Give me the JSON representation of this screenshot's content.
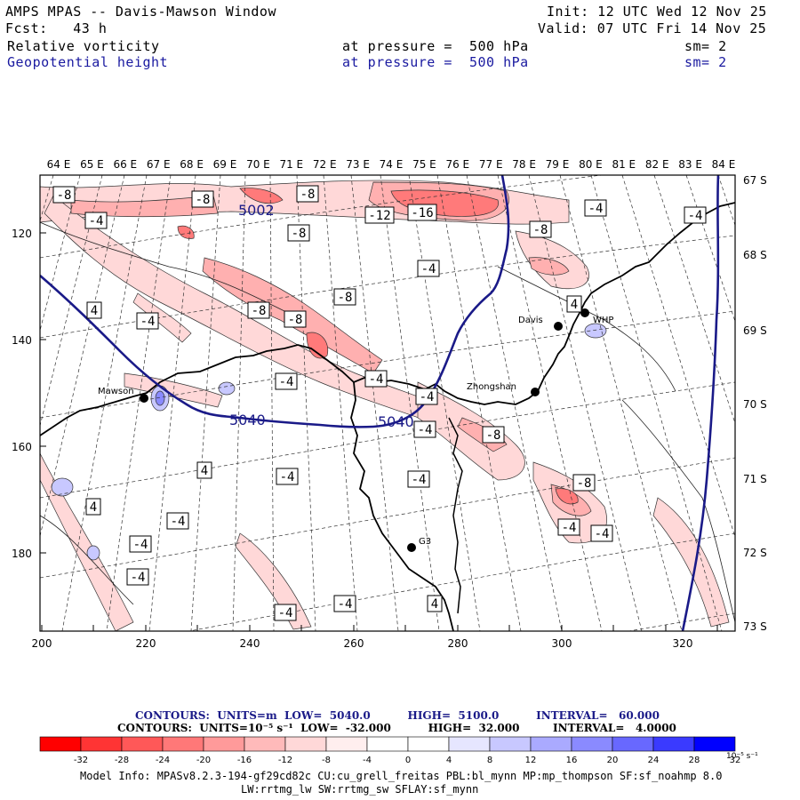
{
  "header": {
    "title": "AMPS MPAS -- Davis-Mawson Window",
    "init": "Init: 12 UTC Wed 12 Nov 25",
    "fcst": "Fcst:   43 h",
    "valid": "Valid: 07 UTC Fri 14 Nov 25",
    "field1": "Relative vorticity",
    "field1_level": "at pressure =  500 hPa",
    "field1_sm": "sm= 2",
    "field2": "Geopotential height",
    "field2_level": "at pressure =  500 hPa",
    "field2_sm": "sm= 2"
  },
  "map": {
    "top_lon_labels": [
      "64 E",
      "65 E",
      "66 E",
      "67 E",
      "68 E",
      "69 E",
      "70 E",
      "71 E",
      "72 E",
      "73 E",
      "74 E",
      "75 E",
      "76 E",
      "77 E",
      "78 E",
      "79 E",
      "80 E",
      "81 E",
      "82 E",
      "83 E",
      "84 E"
    ],
    "right_lat_labels": [
      "67 S",
      "68 S",
      "69 S",
      "70 S",
      "71 S",
      "72 S",
      "73 S"
    ],
    "left_y_ticks": [
      "120",
      "140",
      "160",
      "180"
    ],
    "bottom_x_ticks": [
      "200",
      "220",
      "240",
      "260",
      "280",
      "300",
      "320"
    ],
    "stations": [
      "Mawson",
      "Davis",
      "WHP",
      "Zhongshan",
      "G3"
    ],
    "height_labels": [
      "5002",
      "5040",
      "5040"
    ],
    "vorticity_labels": [
      {
        "text": "-8"
      },
      {
        "text": "-8"
      },
      {
        "text": "-8"
      },
      {
        "text": "-4"
      },
      {
        "text": "-12"
      },
      {
        "text": "-16"
      },
      {
        "text": "-4"
      },
      {
        "text": "-8"
      },
      {
        "text": "-4"
      },
      {
        "text": "-8"
      },
      {
        "text": "-8"
      },
      {
        "text": "-8"
      },
      {
        "text": "-4"
      },
      {
        "text": "-8"
      },
      {
        "text": "4"
      },
      {
        "text": "4"
      },
      {
        "text": "-4"
      },
      {
        "text": "-4"
      },
      {
        "text": "-4"
      },
      {
        "text": "-4"
      },
      {
        "text": "-4"
      },
      {
        "text": "-8"
      },
      {
        "text": "4"
      },
      {
        "text": "-4"
      },
      {
        "text": "-4"
      },
      {
        "text": "4"
      },
      {
        "text": "-4"
      },
      {
        "text": "-8"
      },
      {
        "text": "-4"
      },
      {
        "text": "-4"
      },
      {
        "text": "-4"
      },
      {
        "text": "-4"
      },
      {
        "text": "-4"
      },
      {
        "text": "4"
      },
      {
        "text": "-4"
      }
    ]
  },
  "contour_info": {
    "height_line": "CONTOURS:  UNITS=m  LOW=  5040.0          HIGH=  5100.0          INTERVAL=   60.000",
    "vort_line": "CONTOURS:  UNITS=10⁻⁵ s⁻¹  LOW=  -32.000          HIGH=  32.000         INTERVAL=   4.0000"
  },
  "colorbar": {
    "colors": [
      "#ff0000",
      "#ff3434",
      "#ff5858",
      "#ff7878",
      "#ff9a9a",
      "#ffbaba",
      "#ffd8d8",
      "#ffeeee",
      "#ffffff",
      "#ffffff",
      "#e6e6ff",
      "#c8c8ff",
      "#aaaaff",
      "#8a8aff",
      "#6868ff",
      "#3a3aff",
      "#0000ff"
    ],
    "ticks": [
      "-32",
      "-28",
      "-24",
      "-20",
      "-16",
      "-12",
      "-8",
      "-4",
      "0",
      "4",
      "8",
      "12",
      "16",
      "20",
      "24",
      "28",
      "32"
    ],
    "units": "10⁻⁵ s⁻¹"
  },
  "footer": {
    "line1": "Model Info: MPASv8.2.3-194-gf29cd82c CU:cu_grell_freitas PBL:bl_mynn MP:mp_thompson SF:sf_noahmp 8.0",
    "line2": "LW:rrtmg_lw SW:rrtmg_sw SFLAY:sf_mynn"
  }
}
